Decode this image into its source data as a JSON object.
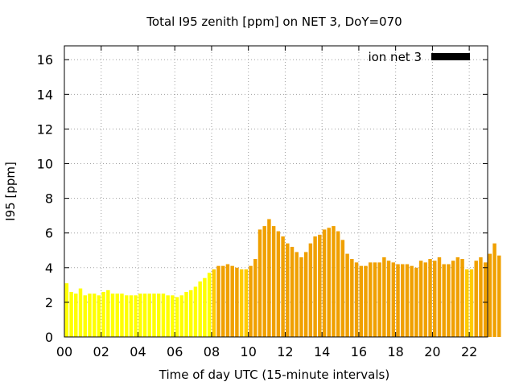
{
  "chart_data": {
    "type": "bar",
    "title": "Total I95 zenith [ppm] on NET 3, DoY=070",
    "xlabel": "Time of day UTC (15-minute intervals)",
    "ylabel": "I95 [ppm]",
    "xlim": [
      0,
      23
    ],
    "ylim": [
      0,
      16.8
    ],
    "grid": true,
    "legend": {
      "label": "ion net 3",
      "color": "#000000",
      "position": "top-right"
    },
    "x_ticks": [
      "00",
      "02",
      "04",
      "06",
      "08",
      "10",
      "12",
      "14",
      "16",
      "18",
      "20",
      "22"
    ],
    "y_ticks": [
      "0",
      "2",
      "4",
      "6",
      "8",
      "10",
      "12",
      "14",
      "16"
    ],
    "colors": {
      "low": "#ffff00",
      "mid": "#ffcc00",
      "high": "#f0a000"
    },
    "values": [
      3.1,
      2.6,
      2.5,
      2.8,
      2.4,
      2.5,
      2.5,
      2.4,
      2.6,
      2.7,
      2.5,
      2.5,
      2.5,
      2.4,
      2.4,
      2.4,
      2.5,
      2.5,
      2.5,
      2.5,
      2.5,
      2.5,
      2.4,
      2.4,
      2.3,
      2.4,
      2.6,
      2.7,
      2.9,
      3.2,
      3.4,
      3.7,
      3.9,
      4.1,
      4.1,
      4.2,
      4.1,
      4.0,
      3.9,
      3.9,
      4.1,
      4.5,
      6.2,
      6.4,
      6.8,
      6.4,
      6.1,
      5.8,
      5.4,
      5.2,
      4.9,
      4.6,
      4.9,
      5.4,
      5.8,
      5.9,
      6.2,
      6.3,
      6.4,
      6.1,
      5.6,
      4.8,
      4.5,
      4.3,
      4.1,
      4.1,
      4.3,
      4.3,
      4.3,
      4.6,
      4.4,
      4.3,
      4.2,
      4.2,
      4.2,
      4.1,
      4.0,
      4.4,
      4.3,
      4.5,
      4.4,
      4.6,
      4.2,
      4.2,
      4.4,
      4.6,
      4.5,
      3.9,
      3.9,
      4.4,
      4.6,
      4.3,
      4.8,
      5.4,
      4.7
    ]
  }
}
